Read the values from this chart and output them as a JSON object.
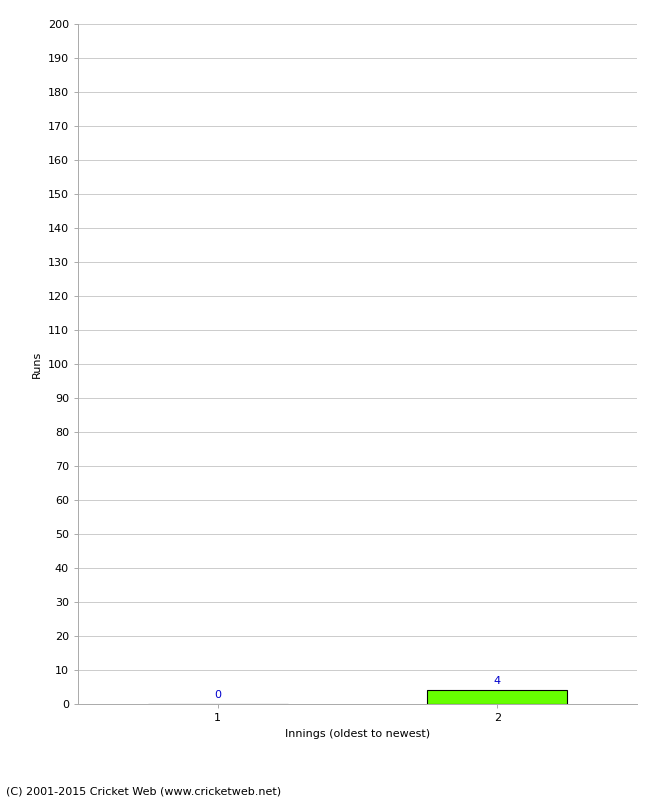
{
  "xlabel": "Innings (oldest to newest)",
  "ylabel": "Runs",
  "categories": [
    1,
    2
  ],
  "values": [
    0,
    4
  ],
  "bar_color": "#66ff00",
  "bar_edgecolor": "#000000",
  "ylim": [
    0,
    200
  ],
  "ytick_step": 10,
  "background_color": "#ffffff",
  "grid_color": "#cccccc",
  "value_label_color": "#0000cc",
  "footer": "(C) 2001-2015 Cricket Web (www.cricketweb.net)",
  "bar_width": 0.5,
  "tick_fontsize": 8,
  "label_fontsize": 8,
  "footer_fontsize": 8
}
